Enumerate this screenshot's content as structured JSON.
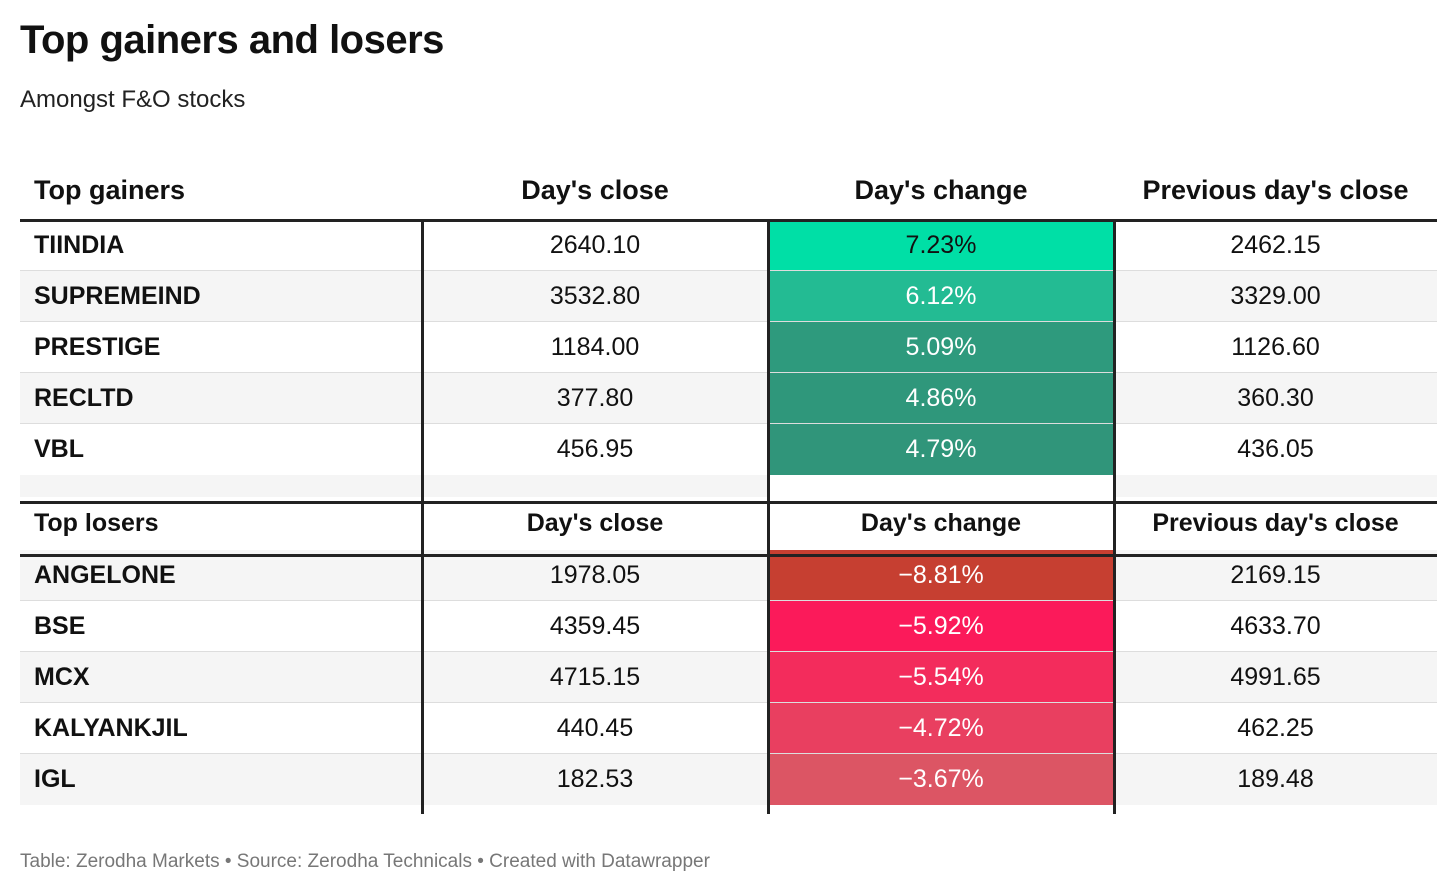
{
  "title": "Top gainers and losers",
  "subtitle": "Amongst F&O stocks",
  "gainers": {
    "headers": [
      "Top gainers",
      "Day's close",
      "Day's change",
      "Previous day's close"
    ],
    "rows": [
      {
        "name": "TIINDIA",
        "close": "2640.10",
        "change": "7.23%",
        "prev": "2462.15",
        "color": "#00dfa6"
      },
      {
        "name": "SUPREMEIND",
        "close": "3532.80",
        "change": "6.12%",
        "prev": "3329.00",
        "color": "#23bb93"
      },
      {
        "name": "PRESTIGE",
        "close": "1184.00",
        "change": "5.09%",
        "prev": "1126.60",
        "color": "#2e9a7d"
      },
      {
        "name": "RECLTD",
        "close": "377.80",
        "change": "4.86%",
        "prev": "360.30",
        "color": "#2f977b"
      },
      {
        "name": "VBL",
        "close": "456.95",
        "change": "4.79%",
        "prev": "436.05",
        "color": "#30957a"
      }
    ]
  },
  "losers": {
    "headers": [
      "Top losers",
      "Day's close",
      "Day's change",
      "Previous day's close"
    ],
    "rows": [
      {
        "name": "ANGELONE",
        "close": "1978.05",
        "change": "−8.81%",
        "prev": "2169.15",
        "color": "#c63f31"
      },
      {
        "name": "BSE",
        "close": "4359.45",
        "change": "−5.92%",
        "prev": "4633.70",
        "color": "#fb1a5a"
      },
      {
        "name": "MCX",
        "close": "4715.15",
        "change": "−5.54%",
        "prev": "4991.65",
        "color": "#f32c5c"
      },
      {
        "name": "KALYANKJIL",
        "close": "440.45",
        "change": "−4.72%",
        "prev": "462.25",
        "color": "#e93f60"
      },
      {
        "name": "IGL",
        "close": "182.53",
        "change": "−3.67%",
        "prev": "189.48",
        "color": "#dc5564"
      }
    ]
  },
  "chart_data": {
    "type": "table",
    "title": "Top gainers and losers",
    "subtitle": "Amongst F&O stocks",
    "columns": [
      "Day's close",
      "Day's change",
      "Previous day's close"
    ],
    "gainers": [
      {
        "stock": "TIINDIA",
        "days_close": 2640.1,
        "days_change_pct": 7.23,
        "prev_close": 2462.15
      },
      {
        "stock": "SUPREMEIND",
        "days_close": 3532.8,
        "days_change_pct": 6.12,
        "prev_close": 3329.0
      },
      {
        "stock": "PRESTIGE",
        "days_close": 1184.0,
        "days_change_pct": 5.09,
        "prev_close": 1126.6
      },
      {
        "stock": "RECLTD",
        "days_close": 377.8,
        "days_change_pct": 4.86,
        "prev_close": 360.3
      },
      {
        "stock": "VBL",
        "days_close": 456.95,
        "days_change_pct": 4.79,
        "prev_close": 436.05
      }
    ],
    "losers": [
      {
        "stock": "ANGELONE",
        "days_close": 1978.05,
        "days_change_pct": -8.81,
        "prev_close": 2169.15
      },
      {
        "stock": "BSE",
        "days_close": 4359.45,
        "days_change_pct": -5.92,
        "prev_close": 4633.7
      },
      {
        "stock": "MCX",
        "days_close": 4715.15,
        "days_change_pct": -5.54,
        "prev_close": 4991.65
      },
      {
        "stock": "KALYANKJIL",
        "days_close": 440.45,
        "days_change_pct": -4.72,
        "prev_close": 462.25
      },
      {
        "stock": "IGL",
        "days_close": 182.53,
        "days_change_pct": -3.67,
        "prev_close": 189.48
      }
    ]
  },
  "footer": "Table: Zerodha Markets • Source: Zerodha Technicals • Created with Datawrapper"
}
